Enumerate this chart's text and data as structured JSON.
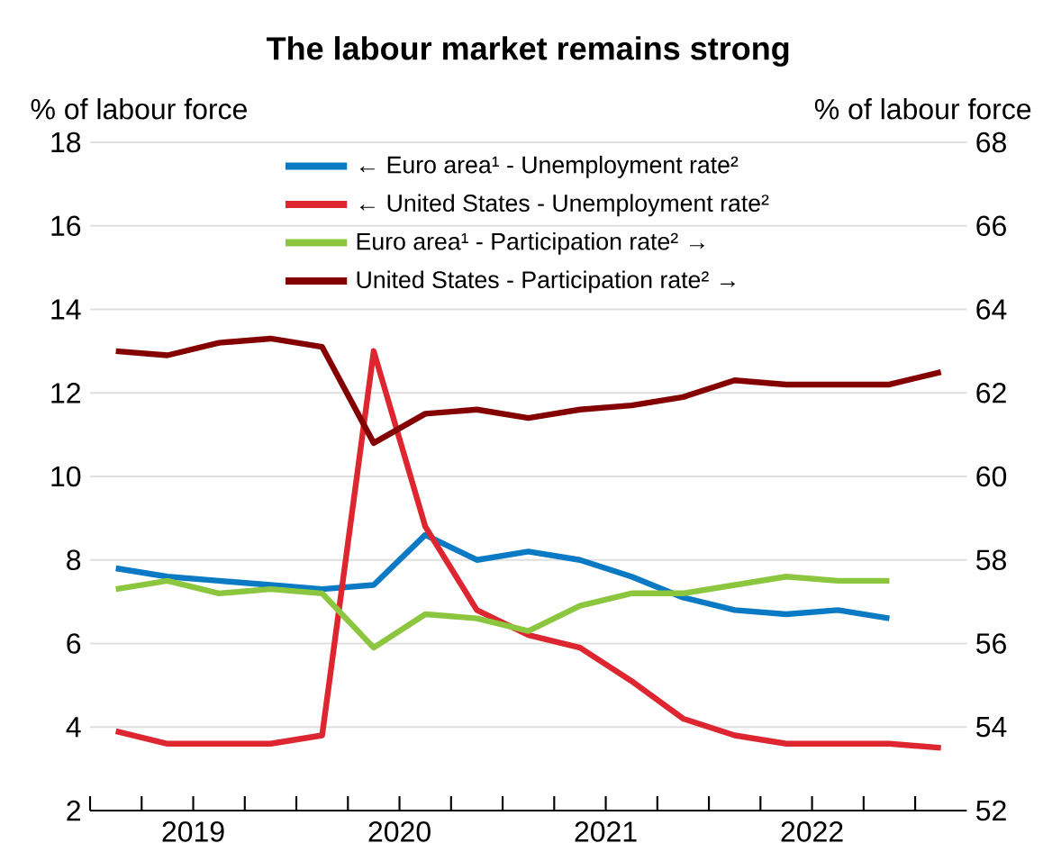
{
  "chart_data": {
    "type": "line",
    "title": "The labour market remains strong",
    "ylabel": "% of labour force",
    "y2label": "% of labour force",
    "x": [
      2019.125,
      2019.375,
      2019.625,
      2019.875,
      2020.125,
      2020.375,
      2020.625,
      2020.875,
      2021.125,
      2021.375,
      2021.625,
      2021.875,
      2022.125,
      2022.375,
      2022.625,
      2022.875,
      2023.125
    ],
    "xlim": [
      2019,
      2023.25
    ],
    "xticks": [
      {
        "value": 2019,
        "label": null
      },
      {
        "value": 2019.25,
        "label": null
      },
      {
        "value": 2019.5,
        "label": "2019"
      },
      {
        "value": 2019.75,
        "label": null
      },
      {
        "value": 2020,
        "label": null
      },
      {
        "value": 2020.25,
        "label": null
      },
      {
        "value": 2020.5,
        "label": "2020"
      },
      {
        "value": 2020.75,
        "label": null
      },
      {
        "value": 2021,
        "label": null
      },
      {
        "value": 2021.25,
        "label": null
      },
      {
        "value": 2021.5,
        "label": "2021"
      },
      {
        "value": 2021.75,
        "label": null
      },
      {
        "value": 2022,
        "label": null
      },
      {
        "value": 2022.25,
        "label": null
      },
      {
        "value": 2022.5,
        "label": "2022"
      },
      {
        "value": 2022.75,
        "label": null
      },
      {
        "value": 2023,
        "label": null
      }
    ],
    "ylim": [
      2,
      18
    ],
    "yticks": [
      2,
      4,
      6,
      8,
      10,
      12,
      14,
      16,
      18
    ],
    "y2lim": [
      52,
      68
    ],
    "y2ticks": [
      52,
      54,
      56,
      58,
      60,
      62,
      64,
      66,
      68
    ],
    "grid": "y",
    "legend": "top",
    "line_style": "solid",
    "series": [
      {
        "name": "← Euro area¹ - Unemployment rate²",
        "color": "#0a7ac4",
        "values": [
          7.8,
          7.6,
          7.5,
          7.4,
          7.3,
          7.4,
          8.6,
          8.0,
          8.2,
          8.0,
          7.6,
          7.1,
          6.8,
          6.7,
          6.8,
          6.6,
          null
        ]
      },
      {
        "name": "← United States - Unemployment rate²",
        "color": "#dd2630",
        "values": [
          3.9,
          3.6,
          3.6,
          3.6,
          3.8,
          13.0,
          8.8,
          6.8,
          6.2,
          5.9,
          5.1,
          4.2,
          3.8,
          3.6,
          3.6,
          3.6,
          3.5
        ]
      },
      {
        "name": "Euro area¹ - Participation rate² →",
        "color": "#8cc63e",
        "axis": "y2",
        "values": [
          57.3,
          57.5,
          57.2,
          57.3,
          57.2,
          55.9,
          56.7,
          56.6,
          56.3,
          56.9,
          57.2,
          57.2,
          57.4,
          57.6,
          57.5,
          57.5,
          null
        ]
      },
      {
        "name": "United States - Participation rate² →",
        "color": "#840000",
        "axis": "y2",
        "values": [
          63.0,
          62.9,
          63.2,
          63.3,
          63.1,
          60.8,
          61.5,
          61.6,
          61.4,
          61.6,
          61.7,
          61.9,
          62.3,
          62.2,
          62.2,
          62.2,
          62.5
        ]
      }
    ]
  }
}
